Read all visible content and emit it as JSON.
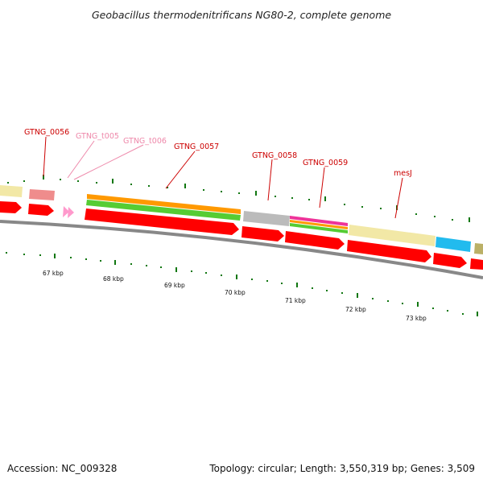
{
  "title": "Geobacillus thermodenitrificans NG80-2, complete genome",
  "footer": {
    "accession": "Accession: NC_009328",
    "topology": "Topology: circular; Length: 3,550,319 bp; Genes: 3,509"
  },
  "gene_labels": [
    "GTNG_0056",
    "GTNG_t005",
    "GTNG_t006",
    "GTNG_0057",
    "GTNG_0058",
    "GTNG_0059",
    "mesJ"
  ],
  "scale_labels": [
    "67 kbp",
    "68 kbp",
    "69 kbp",
    "70 kbp",
    "71 kbp",
    "72 kbp",
    "73 kbp"
  ],
  "colors": {
    "gene_label": "#cc0000",
    "trna_label": "#ee88aa",
    "cds": "#ff0000",
    "trna": "#ff99cc",
    "backbone": "#888888",
    "tick": "#117711"
  }
}
